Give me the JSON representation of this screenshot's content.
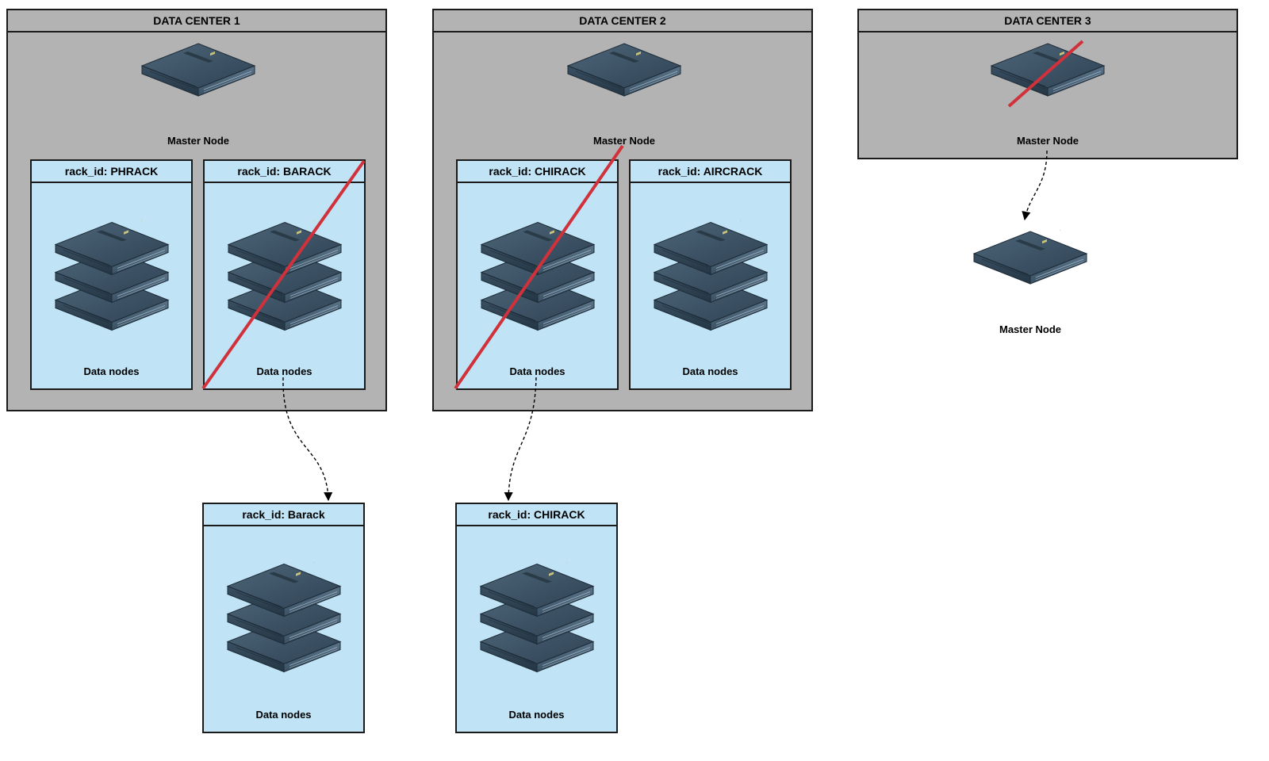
{
  "data_centers": [
    {
      "title": "DATA CENTER 1",
      "master_label": "Master Node",
      "master_failed": false,
      "racks": [
        {
          "title": "rack_id: PHRACK",
          "label": "Data nodes",
          "failed": false
        },
        {
          "title": "rack_id: BARACK",
          "label": "Data nodes",
          "failed": true
        }
      ]
    },
    {
      "title": "DATA CENTER 2",
      "master_label": "Master Node",
      "master_failed": false,
      "racks": [
        {
          "title": "rack_id: CHIRACK",
          "label": "Data nodes",
          "failed": true
        },
        {
          "title": "rack_id: AIRCRACK",
          "label": "Data nodes",
          "failed": false
        }
      ]
    },
    {
      "title": "DATA CENTER 3",
      "master_label": "Master Node",
      "master_failed": true,
      "racks": []
    }
  ],
  "relocated": {
    "master": {
      "label": "Master Node"
    },
    "racks": [
      {
        "title": "rack_id: Barack",
        "label": "Data nodes"
      },
      {
        "title": "rack_id: CHIRACK",
        "label": "Data nodes"
      }
    ]
  },
  "colors": {
    "data_center_fill": "#b3b3b3",
    "rack_fill": "#c0e3f5",
    "failure_strike": "#d0313a",
    "server_body": "#3c5366"
  },
  "icons": {
    "server": "server-icon",
    "server_stack": "server-stack-icon"
  }
}
